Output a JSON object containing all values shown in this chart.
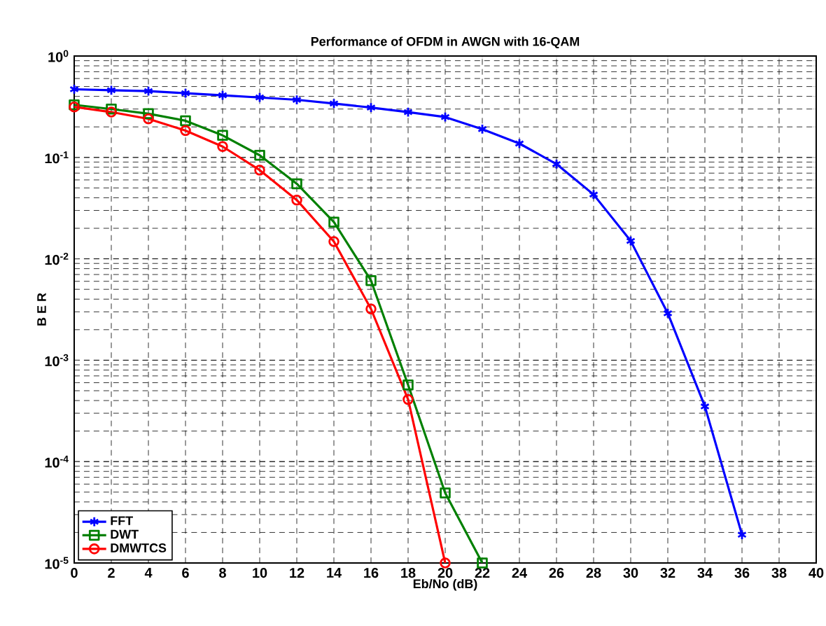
{
  "chart_data": {
    "type": "line",
    "title": "Performance of OFDM in AWGN with 16-QAM",
    "xlabel": "Eb/No (dB)",
    "ylabel": "B E R",
    "x": [
      0,
      2,
      4,
      6,
      8,
      10,
      12,
      14,
      16,
      18,
      20,
      22,
      24,
      26,
      28,
      30,
      32,
      34,
      36
    ],
    "series": [
      {
        "name": "FFT",
        "color": "#0000ff",
        "marker": "cross",
        "values": [
          0.47,
          0.46,
          0.45,
          0.43,
          0.41,
          0.39,
          0.37,
          0.34,
          0.31,
          0.28,
          0.25,
          0.19,
          0.137,
          0.086,
          0.043,
          0.015,
          0.0029,
          0.00035,
          1.9e-05
        ]
      },
      {
        "name": "DWT",
        "color": "#008000",
        "marker": "square",
        "values": [
          0.33,
          0.3,
          0.27,
          0.23,
          0.165,
          0.105,
          0.055,
          0.023,
          0.0061,
          0.00057,
          4.9e-05,
          1e-05,
          null,
          null,
          null,
          null,
          null,
          null,
          null
        ]
      },
      {
        "name": "DMWTCS",
        "color": "#ff0000",
        "marker": "circle",
        "values": [
          0.315,
          0.28,
          0.24,
          0.184,
          0.128,
          0.075,
          0.038,
          0.0148,
          0.0032,
          0.00041,
          1e-05,
          null,
          null,
          null,
          null,
          null,
          null,
          null,
          null
        ]
      }
    ],
    "xlim": [
      0,
      40
    ],
    "xticks": [
      0,
      2,
      4,
      6,
      8,
      10,
      12,
      14,
      16,
      18,
      20,
      22,
      24,
      26,
      28,
      30,
      32,
      34,
      36,
      38,
      40
    ],
    "ylim": [
      1e-05,
      1
    ],
    "log": "y",
    "yticks": [
      {
        "value": 1e-05,
        "label": "10$^{-5}$"
      },
      {
        "value": 0.0001,
        "label": "10$^{-4}$"
      },
      {
        "value": 0.001,
        "label": "10$^{-3}$"
      },
      {
        "value": 0.01,
        "label": "10$^{-2}$"
      },
      {
        "value": 0.1,
        "label": "10$^{-1}$"
      },
      {
        "value": 1,
        "label": "10$^{0}$"
      }
    ],
    "grid": true,
    "legend": "bottom left",
    "line_style": "solid"
  }
}
